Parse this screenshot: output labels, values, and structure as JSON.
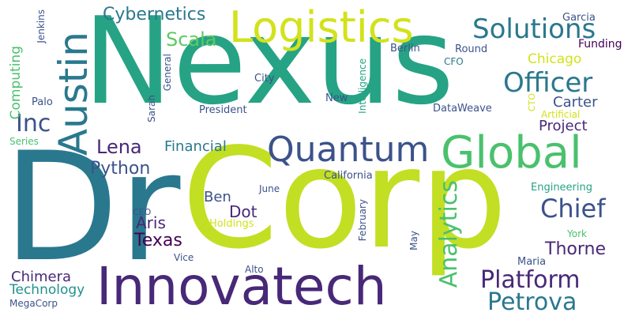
{
  "words": {
    "nexus": "Nexus",
    "dr": "Dr",
    "corp": "Corp",
    "innovatech": "Innovatech",
    "logistics": "Logistics",
    "global": "Global",
    "quantum": "Quantum",
    "austin": "Austin",
    "solutions": "Solutions",
    "officer": "Officer",
    "cybernetics": "Cybernetics",
    "scala": "Scala",
    "platform": "Platform",
    "petrova": "Petrova",
    "chief": "Chief",
    "analytics": "Analytics",
    "inc": "Inc",
    "lena": "Lena",
    "python": "Python",
    "project": "Project",
    "carter": "Carter",
    "thorne": "Thorne",
    "chicago": "Chicago",
    "financial": "Financial",
    "chimera": "Chimera",
    "technology": "Technology",
    "texas": "Texas",
    "aris": "Aris",
    "dot": "Dot",
    "ben": "Ben",
    "computing": "Computing",
    "garcia": "Garcia",
    "funding": "Funding",
    "round": "Round",
    "berlin": "Berlin",
    "cfo": "CFO",
    "city": "City",
    "new": "New",
    "intelligence": "Intelligence",
    "dataweave": "DataWeave",
    "cto": "CTO",
    "artificial": "Artificial",
    "president": "President",
    "sarah": "Sarah",
    "general": "General",
    "palo": "Palo",
    "jenkins": "Jenkins",
    "series": "Series",
    "california": "California",
    "june": "June",
    "engineering": "Engineering",
    "february": "February",
    "holdings": "Holdings",
    "ceo": "CEO",
    "york": "York",
    "may": "May",
    "maria": "Maria",
    "vice": "Vice",
    "alto": "Alto",
    "megacorp": "MegaCorp"
  }
}
